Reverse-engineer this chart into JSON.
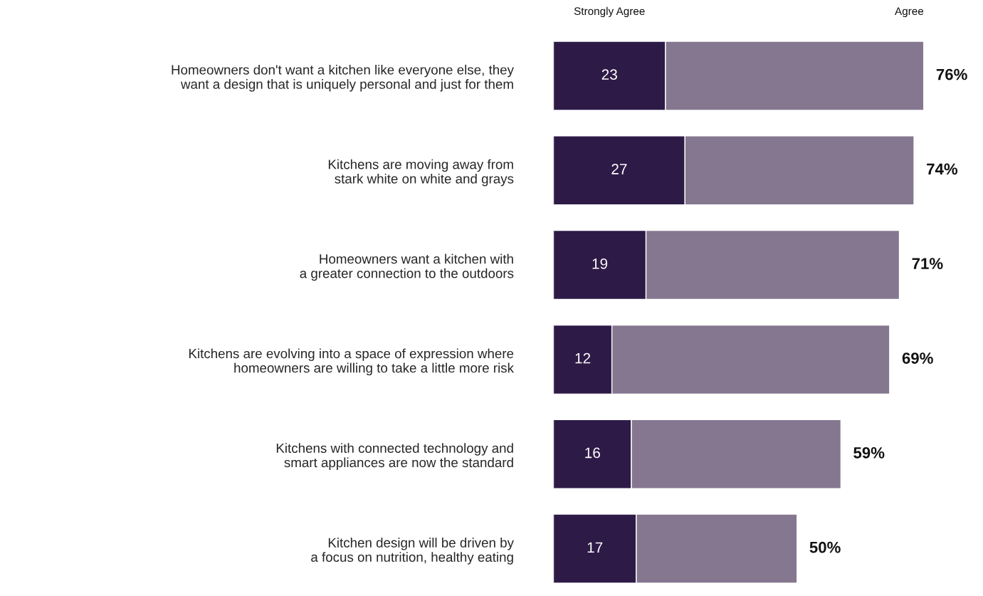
{
  "chart_data": {
    "type": "bar",
    "orientation": "horizontal",
    "stacked": true,
    "categories": [
      "Homeowners don't want a kitchen like everyone else, they\nwant a design that is uniquely personal and just for them",
      "Kitchens are moving away from\nstark white on white and grays",
      "Homeowners want a kitchen with\na greater connection to the outdoors",
      "Kitchens are evolving into a space of expression where\nhomeowners are willing to take a little more risk",
      "Kitchens with connected technology and\nsmart appliances are now the standard",
      "Kitchen design will be driven by\na focus on nutrition, healthy eating"
    ],
    "series": [
      {
        "name": "Strongly Agree",
        "color": "#2e1a47",
        "values": [
          23,
          27,
          19,
          12,
          16,
          17
        ],
        "value_labels": [
          "23",
          "27",
          "19",
          "12",
          "16",
          "17"
        ]
      },
      {
        "name": "Agree",
        "color": "#84778f",
        "values": [
          53,
          47,
          52,
          57,
          43,
          33
        ]
      }
    ],
    "totals": [
      "76%",
      "74%",
      "71%",
      "69%",
      "59%",
      "50%"
    ],
    "tick_labels": "y",
    "grid": false
  }
}
